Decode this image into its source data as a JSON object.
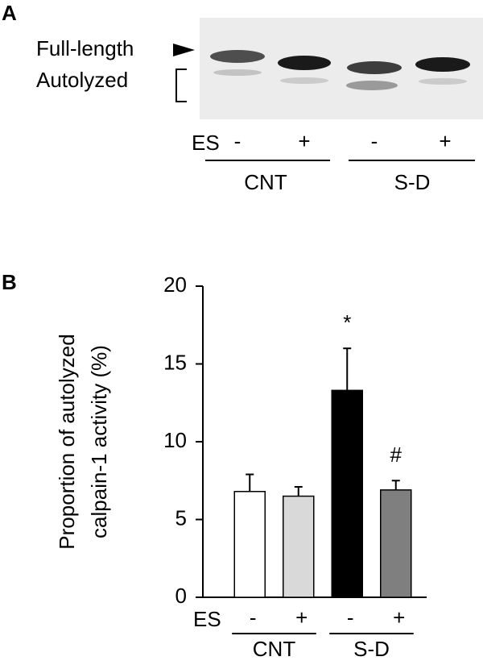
{
  "panel_a": {
    "label": "A",
    "band_labels": [
      "Full-length",
      "Autolyzed"
    ],
    "lane_label": "ES",
    "lanes": [
      "-",
      "+",
      "-",
      "+"
    ],
    "groups": [
      "CNT",
      "S-D"
    ]
  },
  "chart_data": {
    "type": "bar",
    "panel_label": "B",
    "y_label": [
      "Proportion of autolyzed",
      "calpain-1 activity (%)"
    ],
    "x_label": "ES",
    "categories": [
      "-",
      "+",
      "-",
      "+"
    ],
    "groups": [
      "CNT",
      "S-D"
    ],
    "values": [
      6.8,
      6.5,
      13.3,
      6.9
    ],
    "errors": [
      1.1,
      0.6,
      2.7,
      0.6
    ],
    "colors": [
      "#ffffff",
      "#d9d9d9",
      "#000000",
      "#7f7f7f"
    ],
    "annotations": [
      null,
      null,
      "*",
      "#"
    ],
    "ylim": [
      0,
      20
    ],
    "yticks": [
      0,
      5,
      10,
      15,
      20
    ]
  }
}
